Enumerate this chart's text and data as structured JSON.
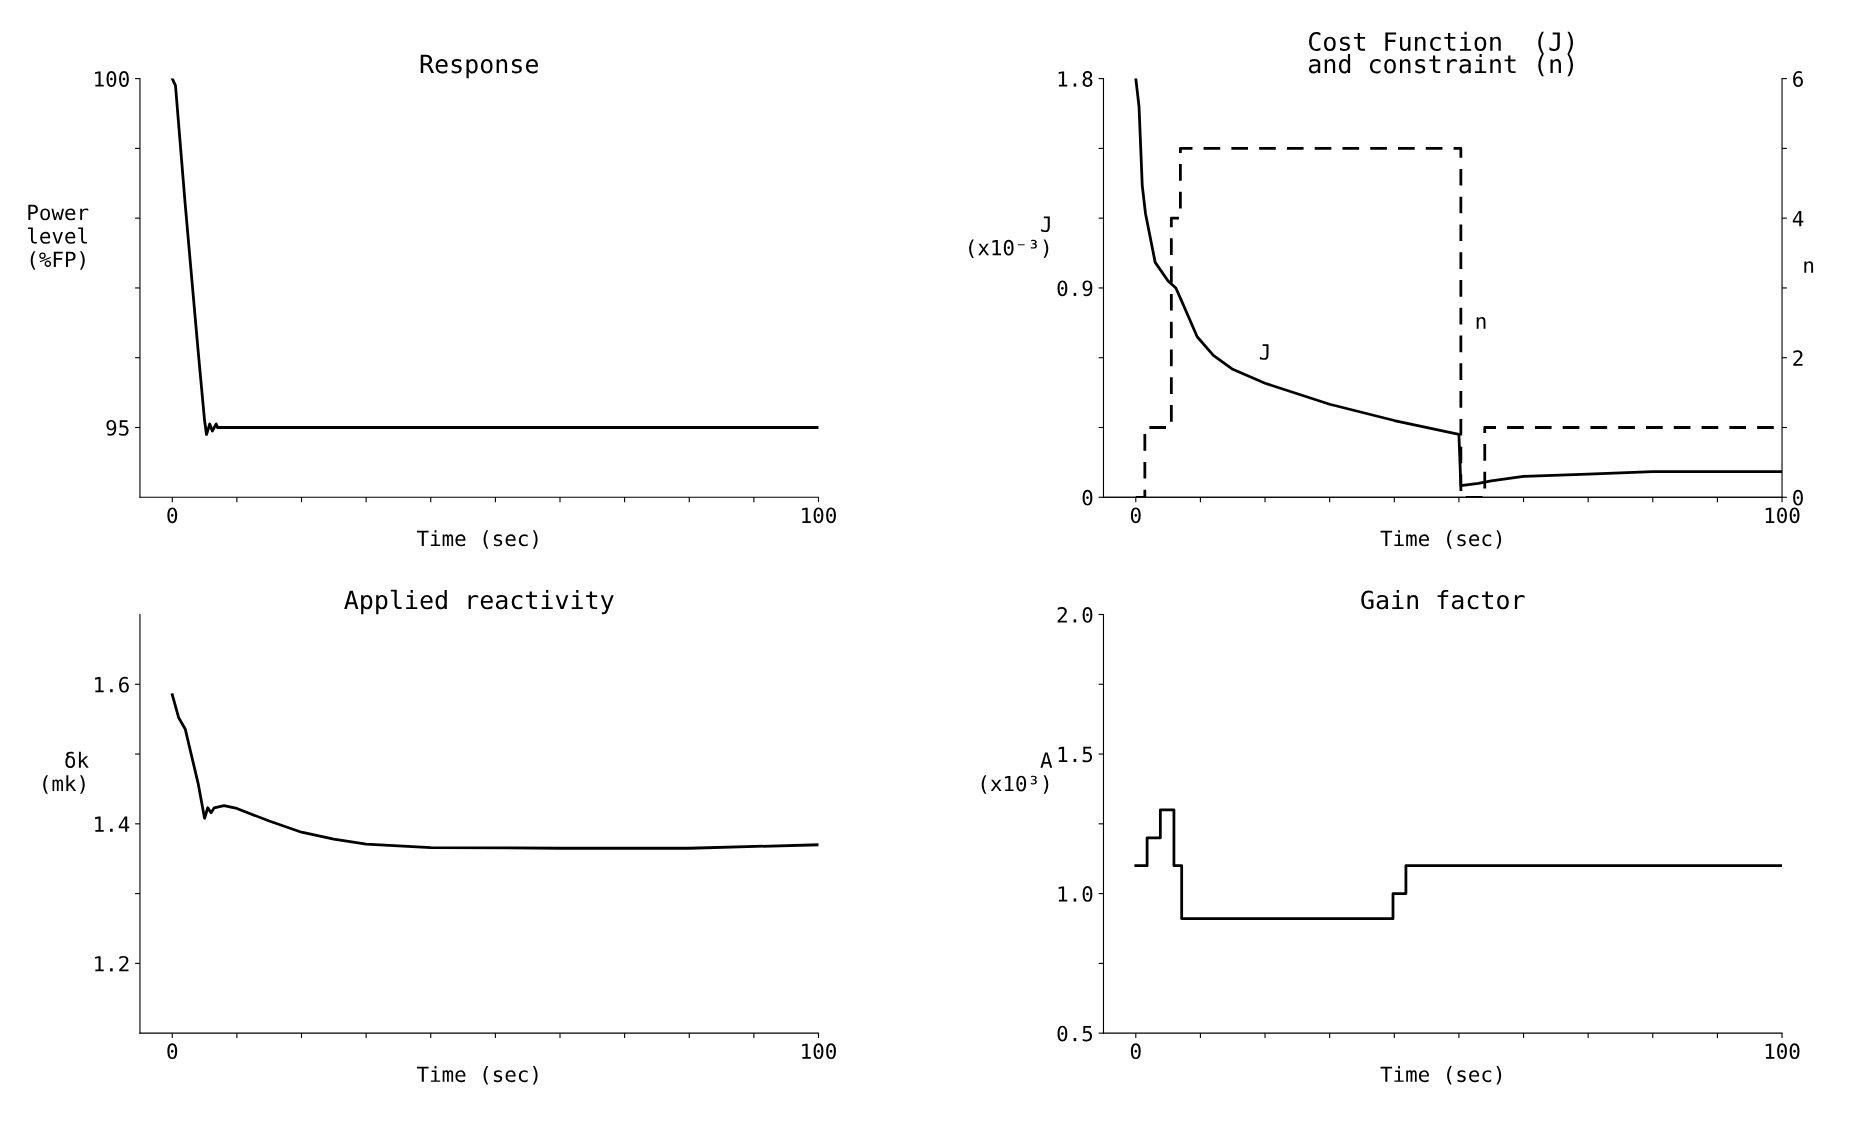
{
  "chart_data": [
    {
      "type": "line",
      "title": "Response",
      "xlabel": "Time (sec)",
      "ylabel": "Power\nlevel\n(%FP)",
      "xlim": [
        -5,
        100
      ],
      "ylim": [
        94,
        100
      ],
      "xticks": [
        0,
        {
          "value": 10,
          "label": null
        },
        {
          "value": 20,
          "label": null
        },
        {
          "value": 30,
          "label": null
        },
        {
          "value": 40,
          "label": null
        },
        {
          "value": 50,
          "label": null
        },
        {
          "value": 60,
          "label": null
        },
        {
          "value": 70,
          "label": null
        },
        {
          "value": 80,
          "label": null
        },
        {
          "value": 90,
          "label": null
        },
        100
      ],
      "yticks": [
        95,
        {
          "value": 96,
          "label": null
        },
        {
          "value": 97,
          "label": null
        },
        {
          "value": 98,
          "label": null
        },
        {
          "value": 99,
          "label": null
        },
        100
      ],
      "series": [
        {
          "color": "#000000",
          "x": [
            0,
            0.5,
            2,
            4,
            5,
            5.3,
            5.8,
            6.2,
            6.8,
            7,
            20,
            50,
            100
          ],
          "values": [
            100,
            99.9,
            98.2,
            96.1,
            95.1,
            94.9,
            95.05,
            94.95,
            95.05,
            95.0,
            95.0,
            95.0,
            95.0
          ]
        }
      ]
    },
    {
      "type": "line",
      "title": "Cost Function  (J)\nand constraint (n)",
      "xlabel": "Time (sec)",
      "ylabel": "J\n(x10⁻³)",
      "y2label": "n",
      "xlim": [
        -5,
        100
      ],
      "ylim": [
        0,
        1.8
      ],
      "y2lim": [
        0,
        6
      ],
      "xticks": [
        0,
        {
          "value": 10,
          "label": null
        },
        {
          "value": 20,
          "label": null
        },
        {
          "value": 30,
          "label": null
        },
        {
          "value": 40,
          "label": null
        },
        {
          "value": 50,
          "label": null
        },
        {
          "value": 60,
          "label": null
        },
        {
          "value": 70,
          "label": null
        },
        {
          "value": 80,
          "label": null
        },
        {
          "value": 90,
          "label": null
        },
        100
      ],
      "yticks": [
        0,
        {
          "value": 0.3,
          "label": null
        },
        {
          "value": 0.6,
          "label": null
        },
        0.9,
        {
          "value": 1.2,
          "label": null
        },
        {
          "value": 1.5,
          "label": null
        },
        1.8
      ],
      "y2ticks": [
        0,
        {
          "value": 1,
          "label": null
        },
        2,
        {
          "value": 3,
          "label": null
        },
        4,
        {
          "value": 5,
          "label": null
        },
        6
      ],
      "series": [
        {
          "name": "J",
          "color": "#000000",
          "x": [
            0,
            0.5,
            1,
            1.5,
            3,
            5,
            6.2,
            7,
            9.5,
            12,
            15,
            20,
            30,
            40,
            50,
            50.3,
            53,
            55,
            60,
            70,
            80,
            100
          ],
          "values": [
            1.8,
            1.68,
            1.34,
            1.22,
            1.01,
            0.93,
            0.9,
            0.85,
            0.69,
            0.61,
            0.55,
            0.49,
            0.4,
            0.33,
            0.27,
            0.05,
            0.06,
            0.07,
            0.09,
            0.1,
            0.11,
            0.11
          ]
        },
        {
          "name": "n",
          "type": "step",
          "axis": "y2",
          "line_style": "dashed",
          "color": "#000000",
          "x": [
            0,
            1.4,
            5.5,
            6.9,
            50.3,
            54,
            100
          ],
          "values": [
            0,
            1,
            4,
            5,
            0,
            1,
            1
          ]
        }
      ]
    },
    {
      "type": "line",
      "title": "Applied reactivity",
      "xlabel": "Time (sec)",
      "ylabel": "δk\n(mk)",
      "xlim": [
        -5,
        100
      ],
      "ylim": [
        1.1,
        1.7
      ],
      "xticks": [
        0,
        {
          "value": 10,
          "label": null
        },
        {
          "value": 20,
          "label": null
        },
        {
          "value": 30,
          "label": null
        },
        {
          "value": 40,
          "label": null
        },
        {
          "value": 50,
          "label": null
        },
        {
          "value": 60,
          "label": null
        },
        {
          "value": 70,
          "label": null
        },
        {
          "value": 80,
          "label": null
        },
        {
          "value": 90,
          "label": null
        },
        100
      ],
      "yticks": [
        1.2,
        {
          "value": 1.3,
          "label": null
        },
        1.4,
        {
          "value": 1.5,
          "label": null
        },
        1.6
      ],
      "series": [
        {
          "color": "#000000",
          "x": [
            0,
            1,
            2,
            4,
            5,
            5.5,
            6,
            6.5,
            8,
            10,
            15,
            20,
            25,
            30,
            40,
            60,
            80,
            100
          ],
          "values": [
            1.585,
            1.552,
            1.536,
            1.458,
            1.408,
            1.423,
            1.416,
            1.423,
            1.426,
            1.422,
            1.404,
            1.388,
            1.378,
            1.371,
            1.366,
            1.365,
            1.365,
            1.37
          ]
        }
      ]
    },
    {
      "type": "step",
      "title": "Gain factor",
      "xlabel": "Time (sec)",
      "ylabel": "A\n(x10³)",
      "xlim": [
        -5,
        100
      ],
      "ylim": [
        0.5,
        2.0
      ],
      "xticks": [
        0,
        {
          "value": 10,
          "label": null
        },
        {
          "value": 20,
          "label": null
        },
        {
          "value": 30,
          "label": null
        },
        {
          "value": 40,
          "label": null
        },
        {
          "value": 50,
          "label": null
        },
        {
          "value": 60,
          "label": null
        },
        {
          "value": 70,
          "label": null
        },
        {
          "value": 80,
          "label": null
        },
        {
          "value": 90,
          "label": null
        },
        100
      ],
      "yticks": [
        0.5,
        {
          "value": 0.75,
          "label": null
        },
        {
          "value": 1,
          "label": "1.0"
        },
        {
          "value": 1.25,
          "label": null
        },
        1.5,
        {
          "value": 1.75,
          "label": null
        },
        {
          "value": 2,
          "label": "2.0"
        }
      ],
      "series": [
        {
          "color": "#000000",
          "x": [
            0,
            1.75,
            3.8,
            5.9,
            7.1,
            39.8,
            41.8,
            100
          ],
          "values": [
            1.1,
            1.2,
            1.3,
            1.1,
            0.91,
            1.0,
            1.1,
            1.1
          ]
        }
      ]
    }
  ]
}
